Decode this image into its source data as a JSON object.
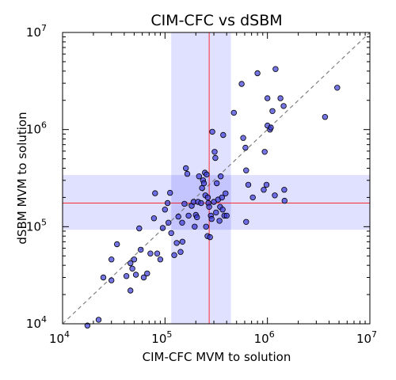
{
  "chart_data": {
    "type": "scatter",
    "title": "CIM-CFC vs dSBM",
    "xlabel": "CIM-CFC MVM to solution",
    "ylabel": "dSBM MVM to solution",
    "xscale": "log",
    "yscale": "log",
    "xlim": [
      10000,
      10000000
    ],
    "ylim": [
      10000,
      10000000
    ],
    "x_tick_labels": [
      {
        "base": "10",
        "exp": "4"
      },
      {
        "base": "10",
        "exp": "5"
      },
      {
        "base": "10",
        "exp": "6"
      },
      {
        "base": "10",
        "exp": "7"
      }
    ],
    "y_tick_labels": [
      {
        "base": "10",
        "exp": "4"
      },
      {
        "base": "10",
        "exp": "5"
      },
      {
        "base": "10",
        "exp": "6"
      },
      {
        "base": "10",
        "exp": "7"
      }
    ],
    "grid": false,
    "diagonal": {
      "from": [
        10000,
        10000
      ],
      "to": [
        10000000,
        10000000
      ],
      "style": "dashed",
      "color": "#808080"
    },
    "median_x": 270000,
    "median_y": 175000,
    "x_band": [
      115000,
      440000
    ],
    "y_band": [
      93000,
      340000
    ],
    "band_color": "#0000ff",
    "median_line_color": "#ff0000",
    "point_color": "#3a3ad8",
    "point_edge_color": "#000000",
    "series": [
      {
        "points": [
          [
            17500,
            9600
          ],
          [
            22500,
            11000
          ],
          [
            25000,
            30000
          ],
          [
            30000,
            28000
          ],
          [
            30000,
            46000
          ],
          [
            34000,
            66000
          ],
          [
            42000,
            31000
          ],
          [
            46000,
            42000
          ],
          [
            46000,
            22000
          ],
          [
            48000,
            37000
          ],
          [
            50000,
            46000
          ],
          [
            52000,
            32000
          ],
          [
            56000,
            96000
          ],
          [
            58000,
            58000
          ],
          [
            62000,
            30000
          ],
          [
            67000,
            33000
          ],
          [
            72000,
            53000
          ],
          [
            78000,
            122000
          ],
          [
            80000,
            221000
          ],
          [
            84000,
            53000
          ],
          [
            90000,
            46000
          ],
          [
            95000,
            97000
          ],
          [
            100000,
            150000
          ],
          [
            106000,
            175000
          ],
          [
            108000,
            110000
          ],
          [
            112000,
            223000
          ],
          [
            115000,
            86000
          ],
          [
            123000,
            51000
          ],
          [
            130000,
            68000
          ],
          [
            135000,
            127000
          ],
          [
            142000,
            55000
          ],
          [
            147000,
            110000
          ],
          [
            148000,
            70000
          ],
          [
            155000,
            172000
          ],
          [
            160000,
            400000
          ],
          [
            165000,
            350000
          ],
          [
            170000,
            130000
          ],
          [
            182000,
            164000
          ],
          [
            190000,
            180000
          ],
          [
            195000,
            100000
          ],
          [
            200000,
            132000
          ],
          [
            205000,
            125000
          ],
          [
            210000,
            180000
          ],
          [
            215000,
            330000
          ],
          [
            225000,
            175000
          ],
          [
            230000,
            250000
          ],
          [
            235000,
            300000
          ],
          [
            240000,
            280000
          ],
          [
            245000,
            360000
          ],
          [
            248000,
            210000
          ],
          [
            252000,
            100000
          ],
          [
            255000,
            345000
          ],
          [
            260000,
            80000
          ],
          [
            262000,
            200000
          ],
          [
            265000,
            175000
          ],
          [
            270000,
            160000
          ],
          [
            275000,
            78000
          ],
          [
            280000,
            130000
          ],
          [
            285000,
            120000
          ],
          [
            290000,
            950000
          ],
          [
            300000,
            180000
          ],
          [
            305000,
            590000
          ],
          [
            310000,
            510000
          ],
          [
            315000,
            140000
          ],
          [
            320000,
            280000
          ],
          [
            330000,
            190000
          ],
          [
            340000,
            115000
          ],
          [
            345000,
            160000
          ],
          [
            350000,
            330000
          ],
          [
            360000,
            200000
          ],
          [
            365000,
            150000
          ],
          [
            370000,
            880000
          ],
          [
            380000,
            130000
          ],
          [
            390000,
            220000
          ],
          [
            400000,
            130000
          ],
          [
            470000,
            1490000
          ],
          [
            560000,
            2950000
          ],
          [
            580000,
            820000
          ],
          [
            610000,
            650000
          ],
          [
            620000,
            380000
          ],
          [
            620000,
            112000
          ],
          [
            650000,
            270000
          ],
          [
            720000,
            200000
          ],
          [
            800000,
            3800000
          ],
          [
            920000,
            240000
          ],
          [
            940000,
            590000
          ],
          [
            980000,
            270000
          ],
          [
            1000000,
            2100000
          ],
          [
            1000000,
            1100000
          ],
          [
            1060000,
            1000000
          ],
          [
            1080000,
            1050000
          ],
          [
            1120000,
            1550000
          ],
          [
            1180000,
            210000
          ],
          [
            1200000,
            4200000
          ],
          [
            1340000,
            2100000
          ],
          [
            1440000,
            1750000
          ],
          [
            1460000,
            240000
          ],
          [
            1470000,
            185000
          ],
          [
            3650000,
            1350000
          ],
          [
            4800000,
            2700000
          ]
        ]
      }
    ]
  }
}
